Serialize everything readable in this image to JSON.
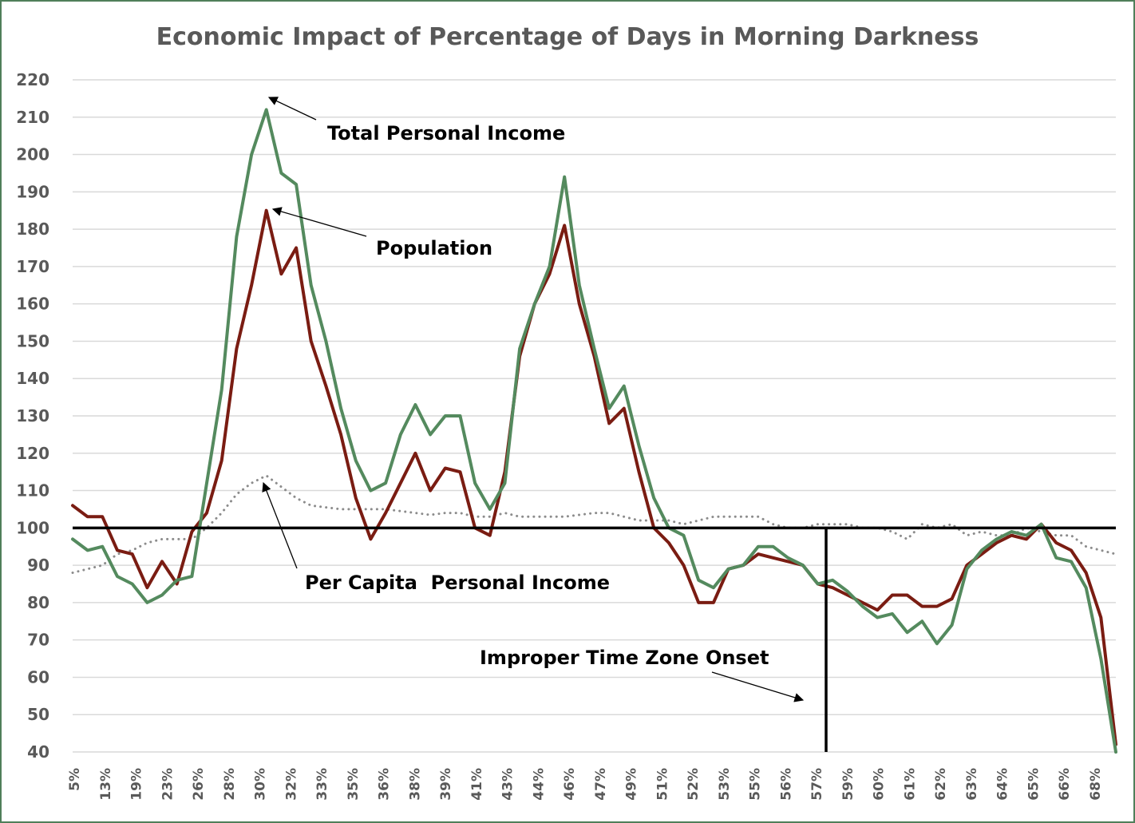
{
  "chart_data": {
    "type": "line",
    "title": "Economic Impact of Percentage of Days in Morning Darkness",
    "xlabel": "",
    "ylabel": "",
    "ylim": [
      40,
      220
    ],
    "yticks": [
      220,
      210,
      200,
      190,
      180,
      170,
      160,
      150,
      140,
      130,
      120,
      110,
      100,
      90,
      80,
      70,
      60,
      50,
      40
    ],
    "x_tick_labels": [
      "5%",
      "13%",
      "19%",
      "23%",
      "26%",
      "28%",
      "30%",
      "32%",
      "33%",
      "35%",
      "36%",
      "38%",
      "39%",
      "41%",
      "43%",
      "44%",
      "46%",
      "47%",
      "49%",
      "51%",
      "52%",
      "53%",
      "55%",
      "56%",
      "57%",
      "59%",
      "60%",
      "61%",
      "62%",
      "63%",
      "64%",
      "65%",
      "66%",
      "68%"
    ],
    "grid": true,
    "reference_line": 100,
    "colors": {
      "total_personal_income": "#548a5e",
      "population": "#7a1c12",
      "per_capita": "#8c8c8c",
      "frame": "#4f7f5a"
    },
    "series": [
      {
        "name": "Total Personal Income",
        "style": "solid",
        "values": [
          97,
          94,
          95,
          87,
          85,
          80,
          82,
          86,
          87,
          112,
          137,
          178,
          200,
          212,
          195,
          192,
          165,
          150,
          132,
          118,
          110,
          112,
          125,
          133,
          125,
          130,
          130,
          112,
          105,
          112,
          148,
          160,
          170,
          194,
          165,
          148,
          132,
          138,
          122,
          108,
          100,
          98,
          86,
          84,
          89,
          90,
          95,
          95,
          92,
          90,
          85,
          86,
          83,
          79,
          76,
          77,
          72,
          75,
          69,
          74,
          89,
          94,
          97,
          99,
          98,
          101,
          92,
          91,
          84,
          65,
          40
        ]
      },
      {
        "name": "Population",
        "style": "solid",
        "values": [
          106,
          103,
          103,
          94,
          93,
          84,
          91,
          85,
          99,
          104,
          118,
          148,
          165,
          185,
          168,
          175,
          150,
          138,
          125,
          108,
          97,
          104,
          112,
          120,
          110,
          116,
          115,
          100,
          98,
          115,
          146,
          160,
          168,
          181,
          160,
          146,
          128,
          132,
          115,
          100,
          96,
          90,
          80,
          80,
          89,
          90,
          93,
          92,
          91,
          90,
          85,
          84,
          82,
          80,
          78,
          82,
          82,
          79,
          79,
          81,
          90,
          93,
          96,
          98,
          97,
          101,
          96,
          94,
          88,
          76,
          42
        ]
      },
      {
        "name": "Per Capita Personal Income",
        "style": "dotted",
        "values": [
          88,
          89,
          90,
          93,
          94,
          96,
          97,
          97,
          97,
          100,
          104,
          109,
          112,
          114,
          111,
          108,
          106,
          105.5,
          105,
          105,
          105,
          105,
          104.5,
          104,
          103.5,
          104,
          104,
          103,
          103,
          104,
          103,
          103,
          103,
          103,
          103.5,
          104,
          104,
          103,
          102,
          102,
          102,
          101,
          102,
          103,
          103,
          103,
          103,
          101,
          100,
          100,
          101,
          101,
          101,
          100,
          100,
          99,
          97,
          101,
          100,
          101,
          98,
          99,
          98,
          98,
          100,
          99,
          98,
          98,
          95,
          94,
          93
        ]
      }
    ],
    "annotations": [
      {
        "text": "Total Personal Income"
      },
      {
        "text": "Population"
      },
      {
        "text": "Per Capita  Personal Income"
      },
      {
        "text": "Improper Time Zone Onset"
      }
    ]
  }
}
